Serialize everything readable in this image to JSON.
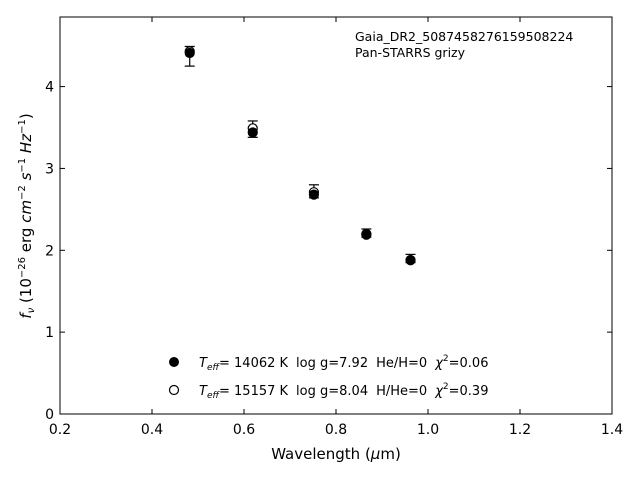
{
  "chart_data": {
    "type": "scatter",
    "xlabel": "Wavelength (μm)",
    "ylabel": "fν (10⁻²⁶ erg cm⁻² s⁻¹ Hz⁻¹)",
    "xlim": [
      0.2,
      1.4
    ],
    "ylim": [
      0,
      4.85
    ],
    "xticks": [
      "0.2",
      "0.4",
      "0.6",
      "0.8",
      "1.0",
      "1.2",
      "1.4"
    ],
    "yticks": [
      "0",
      "1",
      "2",
      "3",
      "4"
    ],
    "grid": false,
    "annotation_lines": [
      "Gaia_DR2_5087458276159508224",
      "Pan-STARRS grizy"
    ],
    "observed": {
      "x": [
        0.482,
        0.619,
        0.752,
        0.866,
        0.962
      ],
      "y": [
        4.37,
        3.48,
        2.72,
        2.21,
        1.9
      ],
      "yerr": [
        0.12,
        0.1,
        0.08,
        0.05,
        0.05
      ]
    },
    "series": [
      {
        "marker": "filled",
        "x": [
          0.482,
          0.619,
          0.752,
          0.866,
          0.962
        ],
        "y": [
          4.41,
          3.44,
          2.68,
          2.19,
          1.88
        ],
        "legend_parts": {
          "teff_symbol": "T",
          "teff_sub": "eff",
          "teff_value": "= 14062 K",
          "logg": "log g=7.92",
          "comp": "He/H=0",
          "chi_symbol": "χ",
          "chi_sup": "2",
          "chi_value": "=0.06"
        }
      },
      {
        "marker": "open",
        "x": [
          0.482,
          0.619,
          0.752,
          0.866,
          0.962
        ],
        "y": [
          4.43,
          3.49,
          2.71,
          2.2,
          1.88
        ],
        "legend_parts": {
          "teff_symbol": "T",
          "teff_sub": "eff",
          "teff_value": "= 15157 K",
          "logg": "log g=8.04",
          "comp": "H/He=0",
          "chi_symbol": "χ",
          "chi_sup": "2",
          "chi_value": "=0.39"
        }
      }
    ],
    "legend_position": "lower-center"
  }
}
